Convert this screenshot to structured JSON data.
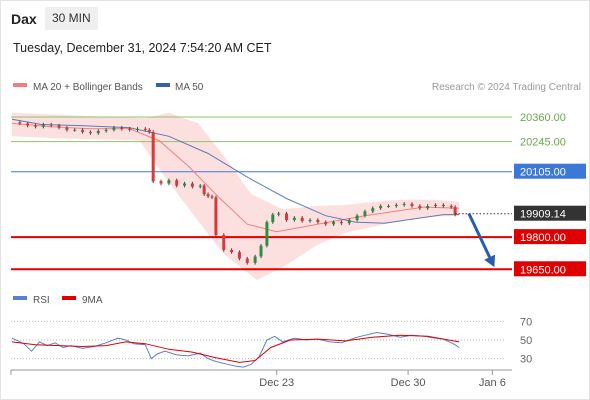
{
  "header": {
    "symbol": "Dax",
    "timeframe": "30 MIN",
    "datetime": "Tuesday, December 31, 2024 7:54:20 AM CET"
  },
  "chart_data": {
    "type": "candlestick",
    "legend": [
      {
        "name": "MA 20 + Bollinger Bands",
        "color": "#f08080"
      },
      {
        "name": "MA 50",
        "color": "#3a5fa8"
      }
    ],
    "source": "Research © 2024 Trading Central",
    "y_range": [
      19600,
      20430
    ],
    "levels": [
      {
        "label": "20360.00",
        "value": 20360,
        "kind": "resistance-minor",
        "color": "#8fc46a"
      },
      {
        "label": "20245.00",
        "value": 20245,
        "kind": "resistance-minor",
        "color": "#8fc46a"
      },
      {
        "label": "20105.00",
        "value": 20105,
        "kind": "pivot",
        "color": "#3c78d8"
      },
      {
        "label": "19909.14",
        "value": 19909.14,
        "kind": "last-price",
        "color": "#333333"
      },
      {
        "label": "19800.00",
        "value": 19800,
        "kind": "support",
        "color": "#e00000"
      },
      {
        "label": "19650.00",
        "value": 19650,
        "kind": "support",
        "color": "#e00000"
      }
    ],
    "x_ticks": [
      "Dec 23",
      "Dec 30",
      "Jan 6"
    ],
    "x_range": [
      0,
      255
    ],
    "x_tick_positions": [
      135,
      202,
      245
    ],
    "trend_arrow": {
      "from": [
        233,
        19910
      ],
      "to": [
        246,
        19660
      ]
    },
    "price_path": [
      [
        0,
        20335
      ],
      [
        4,
        20330
      ],
      [
        8,
        20320
      ],
      [
        12,
        20315
      ],
      [
        16,
        20325
      ],
      [
        20,
        20320
      ],
      [
        24,
        20310
      ],
      [
        28,
        20300
      ],
      [
        32,
        20300
      ],
      [
        36,
        20290
      ],
      [
        40,
        20285
      ],
      [
        44,
        20295
      ],
      [
        48,
        20300
      ],
      [
        52,
        20310
      ],
      [
        56,
        20305
      ],
      [
        60,
        20300
      ],
      [
        64,
        20305
      ],
      [
        68,
        20300
      ],
      [
        70,
        20290
      ],
      [
        72,
        20060
      ],
      [
        76,
        20050
      ],
      [
        80,
        20065
      ],
      [
        84,
        20040
      ],
      [
        88,
        20050
      ],
      [
        92,
        20035
      ],
      [
        96,
        20040
      ],
      [
        98,
        20000
      ],
      [
        100,
        19990
      ],
      [
        102,
        19985
      ],
      [
        104,
        19810
      ],
      [
        108,
        19740
      ],
      [
        112,
        19730
      ],
      [
        116,
        19700
      ],
      [
        120,
        19680
      ],
      [
        124,
        19710
      ],
      [
        127,
        19760
      ],
      [
        130,
        19870
      ],
      [
        133,
        19905
      ],
      [
        136,
        19910
      ],
      [
        140,
        19880
      ],
      [
        144,
        19890
      ],
      [
        148,
        19875
      ],
      [
        152,
        19880
      ],
      [
        156,
        19870
      ],
      [
        160,
        19860
      ],
      [
        164,
        19870
      ],
      [
        168,
        19865
      ],
      [
        172,
        19880
      ],
      [
        176,
        19900
      ],
      [
        180,
        19920
      ],
      [
        184,
        19935
      ],
      [
        188,
        19945
      ],
      [
        192,
        19945
      ],
      [
        196,
        19950
      ],
      [
        200,
        19955
      ],
      [
        204,
        19945
      ],
      [
        208,
        19935
      ],
      [
        212,
        19945
      ],
      [
        216,
        19950
      ],
      [
        220,
        19945
      ],
      [
        224,
        19940
      ],
      [
        226,
        19905
      ]
    ],
    "ma50_path": [
      [
        0,
        20350
      ],
      [
        15,
        20325
      ],
      [
        35,
        20320
      ],
      [
        60,
        20310
      ],
      [
        80,
        20270
      ],
      [
        100,
        20190
      ],
      [
        120,
        20080
      ],
      [
        140,
        19980
      ],
      [
        160,
        19900
      ],
      [
        175,
        19870
      ],
      [
        190,
        19865
      ],
      [
        205,
        19885
      ],
      [
        220,
        19905
      ],
      [
        228,
        19905
      ]
    ],
    "ma20_path": [
      [
        0,
        20330
      ],
      [
        20,
        20315
      ],
      [
        40,
        20305
      ],
      [
        60,
        20305
      ],
      [
        75,
        20250
      ],
      [
        90,
        20130
      ],
      [
        105,
        19990
      ],
      [
        120,
        19860
      ],
      [
        135,
        19825
      ],
      [
        150,
        19850
      ],
      [
        165,
        19875
      ],
      [
        180,
        19900
      ],
      [
        195,
        19920
      ],
      [
        210,
        19940
      ],
      [
        228,
        19935
      ]
    ],
    "bb_upper_path": [
      [
        0,
        20380
      ],
      [
        25,
        20370
      ],
      [
        50,
        20360
      ],
      [
        68,
        20355
      ],
      [
        80,
        20380
      ],
      [
        95,
        20330
      ],
      [
        108,
        20180
      ],
      [
        122,
        20000
      ],
      [
        138,
        19930
      ],
      [
        155,
        19945
      ],
      [
        170,
        19950
      ],
      [
        185,
        19965
      ],
      [
        200,
        19975
      ],
      [
        215,
        19975
      ],
      [
        228,
        19965
      ]
    ],
    "bb_lower_path": [
      [
        0,
        20270
      ],
      [
        25,
        20260
      ],
      [
        50,
        20255
      ],
      [
        65,
        20250
      ],
      [
        78,
        20080
      ],
      [
        92,
        19910
      ],
      [
        108,
        19720
      ],
      [
        125,
        19600
      ],
      [
        140,
        19670
      ],
      [
        155,
        19760
      ],
      [
        170,
        19820
      ],
      [
        185,
        19850
      ],
      [
        200,
        19880
      ],
      [
        215,
        19895
      ],
      [
        228,
        19900
      ]
    ],
    "rsi": {
      "legend": [
        {
          "name": "RSI",
          "color": "#5b7fcf"
        },
        {
          "name": "9MA",
          "color": "#e00000"
        }
      ],
      "y_range": [
        20,
        80
      ],
      "ticks": [
        "70",
        "50",
        "30"
      ],
      "tick_values": [
        70,
        50,
        30
      ],
      "rsi_path": [
        [
          0,
          52
        ],
        [
          6,
          46
        ],
        [
          10,
          38
        ],
        [
          14,
          48
        ],
        [
          18,
          44
        ],
        [
          22,
          47
        ],
        [
          26,
          42
        ],
        [
          30,
          44
        ],
        [
          36,
          41
        ],
        [
          42,
          43
        ],
        [
          48,
          47
        ],
        [
          54,
          52
        ],
        [
          58,
          50
        ],
        [
          62,
          46
        ],
        [
          68,
          45
        ],
        [
          71,
          30
        ],
        [
          74,
          35
        ],
        [
          78,
          38
        ],
        [
          84,
          34
        ],
        [
          90,
          33
        ],
        [
          96,
          36
        ],
        [
          100,
          30
        ],
        [
          104,
          27
        ],
        [
          110,
          24
        ],
        [
          114,
          22
        ],
        [
          118,
          21
        ],
        [
          122,
          24
        ],
        [
          126,
          32
        ],
        [
          130,
          50
        ],
        [
          134,
          54
        ],
        [
          138,
          48
        ],
        [
          144,
          52
        ],
        [
          150,
          50
        ],
        [
          156,
          51
        ],
        [
          162,
          48
        ],
        [
          168,
          47
        ],
        [
          172,
          50
        ],
        [
          176,
          53
        ],
        [
          180,
          55
        ],
        [
          186,
          58
        ],
        [
          192,
          56
        ],
        [
          198,
          53
        ],
        [
          204,
          55
        ],
        [
          210,
          54
        ],
        [
          216,
          52
        ],
        [
          220,
          51
        ],
        [
          226,
          45
        ],
        [
          228,
          42
        ]
      ],
      "ma9_path": [
        [
          0,
          48
        ],
        [
          12,
          45
        ],
        [
          24,
          44
        ],
        [
          36,
          43
        ],
        [
          48,
          44
        ],
        [
          58,
          48
        ],
        [
          68,
          46
        ],
        [
          80,
          40
        ],
        [
          92,
          37
        ],
        [
          104,
          31
        ],
        [
          116,
          26
        ],
        [
          124,
          28
        ],
        [
          132,
          42
        ],
        [
          142,
          50
        ],
        [
          156,
          51
        ],
        [
          170,
          49
        ],
        [
          184,
          53
        ],
        [
          198,
          55
        ],
        [
          212,
          54
        ],
        [
          228,
          48
        ]
      ]
    }
  }
}
